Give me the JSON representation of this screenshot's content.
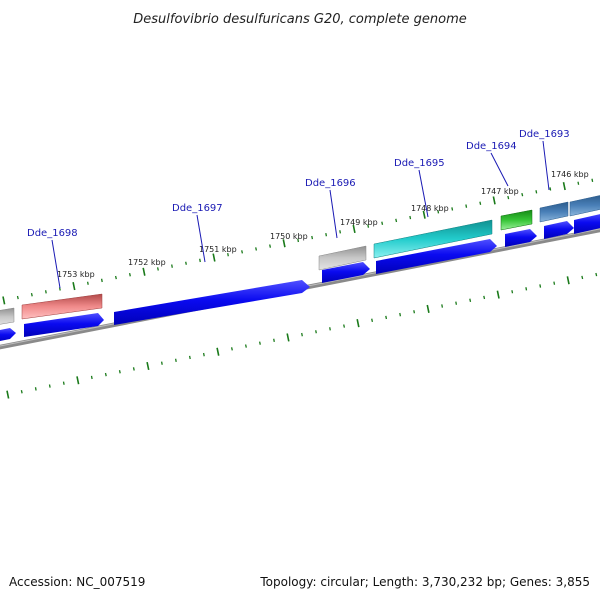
{
  "title": "Desulfovibrio desulfuricans G20, complete genome",
  "footer": {
    "accession": "Accession: NC_007519",
    "info": "Topology: circular; Length: 3,730,232 bp; Genes: 3,855"
  },
  "kbp_labels": [
    "1753 kbp",
    "1752 kbp",
    "1751 kbp",
    "1750 kbp",
    "1749 kbp",
    "1748 kbp",
    "1747 kbp",
    "1746 kbp"
  ],
  "gene_labels": [
    "Dde_1698",
    "Dde_1697",
    "Dde_1696",
    "Dde_1695",
    "Dde_1694",
    "Dde_1693"
  ],
  "colors": {
    "cds": "#0a0af0",
    "backbone": "#808080",
    "tick": "#1a7a1a",
    "label": "#1a1ab4",
    "gray_feature": "#b0b0b0",
    "red_feature": "#e88080",
    "cyan_feature": "#20c8c8",
    "green_feature": "#30c030",
    "steel_feature": "#4a80b8"
  }
}
